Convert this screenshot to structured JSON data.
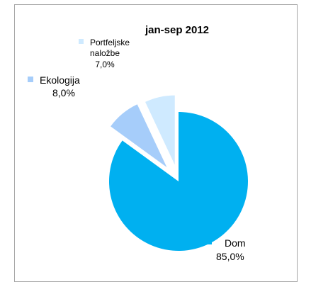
{
  "chart_data": {
    "type": "pie",
    "title": "jan-sep 2012",
    "slices": [
      {
        "name": "Dom",
        "value": 85.0,
        "label": "85,0%",
        "color": "#00b0f0"
      },
      {
        "name": "Ekologija",
        "value": 8.0,
        "label": "8,0%",
        "color": "#a6cdfa"
      },
      {
        "name": "Portfeljske naložbe",
        "name_lines": [
          "Portfeljske",
          "naložbe"
        ],
        "value": 7.0,
        "label": "7,0%",
        "color": "#cfeaff"
      }
    ],
    "legend_placement": "labels-beside-slices",
    "exploded": true
  }
}
